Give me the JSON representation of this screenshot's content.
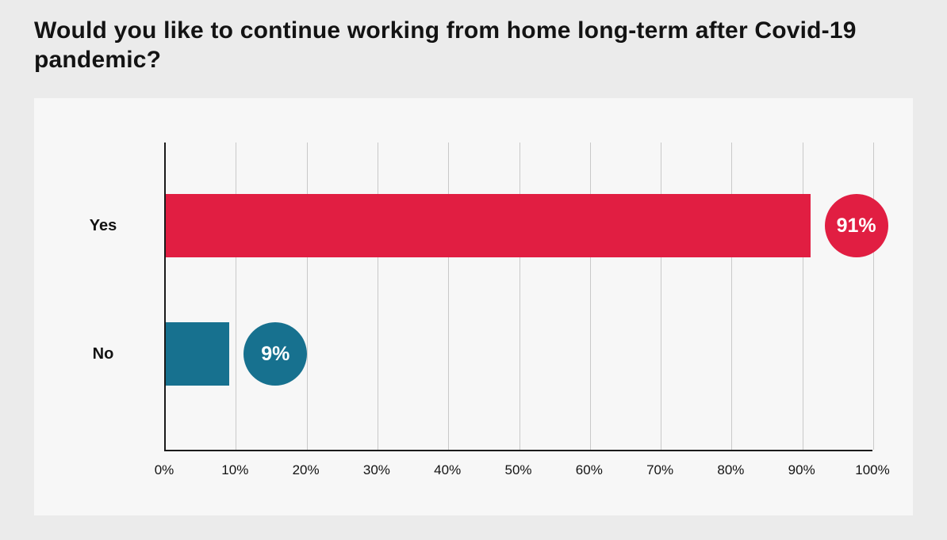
{
  "title": "Would you like to continue working from home long-term after Covid-19 pandemic?",
  "chart_data": {
    "type": "bar",
    "orientation": "horizontal",
    "title": "Would you like to continue working from home long-term after Covid-19 pandemic?",
    "categories": [
      "Yes",
      "No"
    ],
    "values": [
      91,
      9
    ],
    "value_labels": [
      "91%",
      "9%"
    ],
    "bar_colors": [
      "#e11e42",
      "#17718f"
    ],
    "xlabel": "",
    "ylabel": "",
    "xlim": [
      0,
      100
    ],
    "x_ticks": [
      0,
      10,
      20,
      30,
      40,
      50,
      60,
      70,
      80,
      90,
      100
    ],
    "x_tick_labels": [
      "0%",
      "10%",
      "20%",
      "30%",
      "40%",
      "50%",
      "60%",
      "70%",
      "80%",
      "90%",
      "100%"
    ],
    "grid": "vertical",
    "legend": "none",
    "colors": {
      "page_background": "#ebebeb",
      "panel_background": "#f7f7f7",
      "axis": "#1a1a1a",
      "gridline": "#c9c9c9",
      "text": "#131313"
    }
  }
}
